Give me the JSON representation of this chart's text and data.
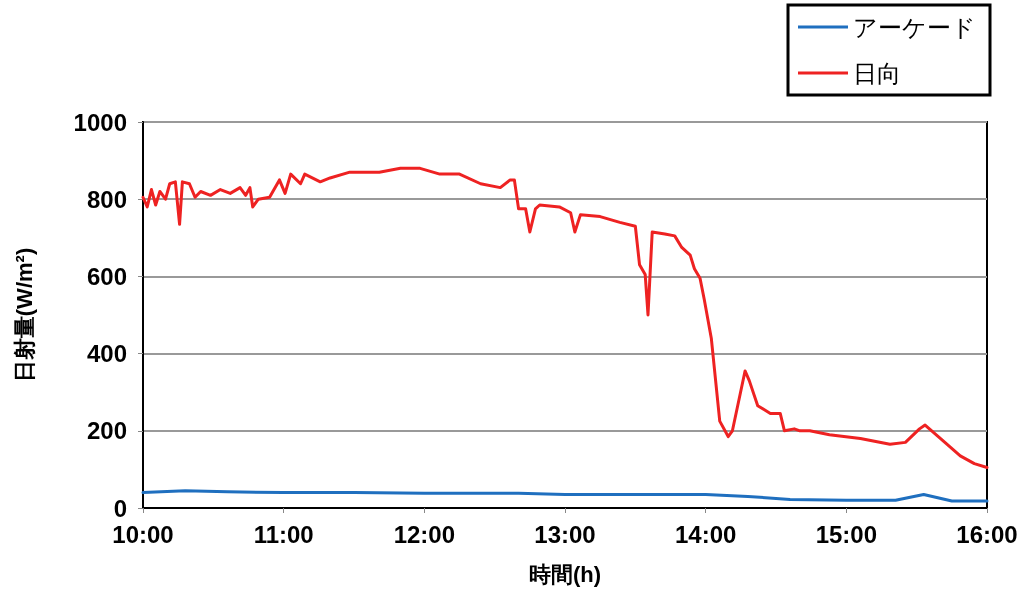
{
  "chart_data": {
    "type": "line",
    "xlabel": "時間(h)",
    "ylabel": "日射量(W/m²)",
    "xlim": [
      10,
      16
    ],
    "xticks": [
      {
        "value": 10,
        "label": "10:00"
      },
      {
        "value": 11,
        "label": "11:00"
      },
      {
        "value": 12,
        "label": "12:00"
      },
      {
        "value": 13,
        "label": "13:00"
      },
      {
        "value": 14,
        "label": "14:00"
      },
      {
        "value": 15,
        "label": "15:00"
      },
      {
        "value": 16,
        "label": "16:00"
      }
    ],
    "ylim": [
      0,
      1000
    ],
    "yticks": [
      0,
      200,
      400,
      600,
      800,
      1000
    ],
    "grid": "y",
    "legend": "top right",
    "marker": "none",
    "line_style": "solid",
    "series": [
      {
        "name": "アーケード",
        "color": "#1f6fbf",
        "x": [
          10,
          10.3,
          10.6,
          11,
          11.5,
          12,
          12.67,
          13,
          13.5,
          14,
          14.3,
          14.6,
          15,
          15.35,
          15.55,
          15.75,
          16
        ],
        "values": [
          40,
          45,
          42,
          40,
          40,
          38,
          38,
          35,
          35,
          35,
          30,
          22,
          20,
          20,
          35,
          18,
          18
        ]
      },
      {
        "name": "日向",
        "color": "#ee2222",
        "x": [
          10,
          10.03,
          10.06,
          10.09,
          10.12,
          10.16,
          10.19,
          10.23,
          10.26,
          10.28,
          10.33,
          10.37,
          10.41,
          10.48,
          10.55,
          10.62,
          10.69,
          10.73,
          10.76,
          10.78,
          10.82,
          10.9,
          10.97,
          11.01,
          11.05,
          11.12,
          11.15,
          11.26,
          11.33,
          11.47,
          11.68,
          11.83,
          11.97,
          12.11,
          12.25,
          12.4,
          12.54,
          12.61,
          12.64,
          12.67,
          12.72,
          12.75,
          12.79,
          12.82,
          12.96,
          13.04,
          13.07,
          13.11,
          13.25,
          13.39,
          13.5,
          13.53,
          13.57,
          13.59,
          13.62,
          13.71,
          13.78,
          13.83,
          13.89,
          13.92,
          13.96,
          13.99,
          14.04,
          14.1,
          14.16,
          14.19,
          14.28,
          14.31,
          14.37,
          14.46,
          14.53,
          14.56,
          14.63,
          14.67,
          14.74,
          14.88,
          15.1,
          15.31,
          15.42,
          15.52,
          15.56,
          15.67,
          15.81,
          15.91,
          16
        ],
        "values": [
          805,
          780,
          825,
          785,
          820,
          800,
          840,
          845,
          735,
          845,
          840,
          805,
          820,
          810,
          825,
          815,
          830,
          810,
          830,
          780,
          800,
          805,
          850,
          815,
          865,
          840,
          865,
          845,
          855,
          870,
          870,
          880,
          880,
          865,
          865,
          840,
          830,
          850,
          850,
          775,
          775,
          715,
          775,
          785,
          780,
          765,
          715,
          760,
          755,
          740,
          730,
          630,
          605,
          500,
          715,
          710,
          705,
          675,
          655,
          620,
          595,
          540,
          440,
          225,
          185,
          200,
          355,
          330,
          265,
          245,
          245,
          200,
          205,
          200,
          200,
          190,
          180,
          165,
          170,
          205,
          215,
          180,
          135,
          115,
          105
        ]
      }
    ]
  }
}
